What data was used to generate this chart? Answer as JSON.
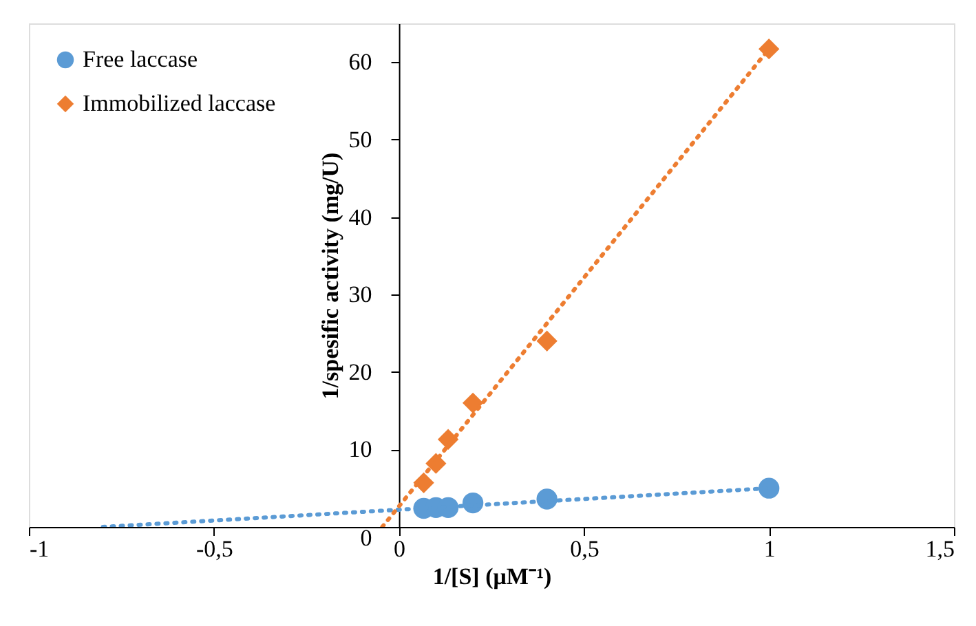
{
  "chart_data": {
    "type": "scatter",
    "xlabel": "1/[S] (μM⁻¹)",
    "ylabel": "1/spesific activity (mg/U)",
    "xlim": [
      -1,
      1.5
    ],
    "xticks": [
      -1,
      {
        "value": -0.5,
        "label": "-0,5"
      },
      0,
      {
        "value": 0.5,
        "label": "0,5"
      },
      1,
      {
        "value": 1.5,
        "label": "1,5"
      }
    ],
    "ylim": [
      0,
      65
    ],
    "yticks": [
      0,
      10,
      20,
      30,
      40,
      50,
      60
    ],
    "grid": false,
    "legend": "top left",
    "series": [
      {
        "name": "Free laccase",
        "type": "scatter",
        "marker": "circle",
        "color": "#5b9bd5",
        "x": [
          0.067,
          0.1,
          0.133,
          0.2,
          0.4,
          1.0
        ],
        "values": [
          2.4,
          2.5,
          2.5,
          3.1,
          3.6,
          5.0
        ]
      },
      {
        "name": "Immobilized laccase",
        "type": "scatter",
        "marker": "diamond",
        "color": "#ed7d31",
        "x": [
          0.067,
          0.1,
          0.133,
          0.2,
          0.4,
          1.0
        ],
        "values": [
          5.7,
          8.2,
          11.3,
          16.0,
          24.0,
          61.7
        ]
      },
      {
        "type": "line",
        "line_style": "dotted",
        "color": "#5b9bd5",
        "x": [
          -0.8,
          1.0
        ],
        "values": [
          0,
          5.0
        ]
      },
      {
        "type": "line",
        "line_style": "dotted",
        "color": "#ed7d31",
        "x": [
          -0.045,
          1.0
        ],
        "values": [
          0,
          61.7
        ]
      }
    ]
  }
}
